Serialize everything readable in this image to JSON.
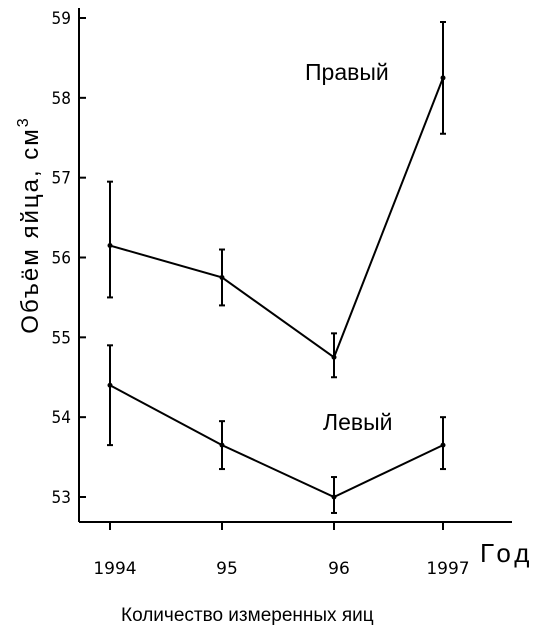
{
  "chart_data": {
    "type": "line",
    "categories": [
      "1994",
      "95",
      "96",
      "1997"
    ],
    "y_ticks": [
      "53",
      "54",
      "55",
      "56",
      "57",
      "58",
      "59"
    ],
    "ylim": [
      52.7,
      59.1
    ],
    "ylabel": "Объём яйца, см",
    "ylabel_sup": "3",
    "xlabel": "Год",
    "footer": "Количество измеренных яиц",
    "grid": false,
    "series": [
      {
        "name": "Правый",
        "values": [
          56.15,
          55.75,
          54.75,
          58.25
        ],
        "error_low": [
          55.5,
          55.4,
          54.5,
          57.55
        ],
        "error_high": [
          56.95,
          56.1,
          55.05,
          58.95
        ]
      },
      {
        "name": "Левый",
        "values": [
          54.4,
          53.65,
          53.0,
          53.65
        ],
        "error_low": [
          53.65,
          53.35,
          52.8,
          53.35
        ],
        "error_high": [
          54.9,
          53.95,
          53.25,
          54.0
        ]
      }
    ]
  }
}
